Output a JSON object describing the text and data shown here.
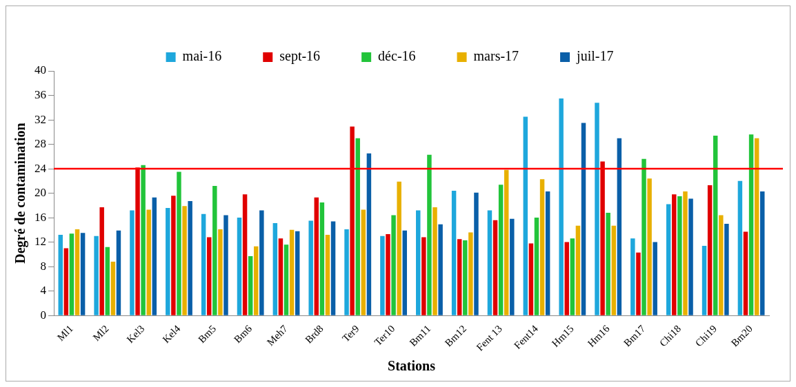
{
  "chart_data": {
    "type": "bar",
    "xlabel": "Stations",
    "ylabel": "Degré de contamination",
    "categories": [
      "Ml1",
      "Ml2",
      "Kel3",
      "Kel4",
      "Bm5",
      "Bm6",
      "Meh7",
      "Brd8",
      "Ter9",
      "Ter10",
      "Bm11",
      "Bm12",
      "Fent 13",
      "Fent14",
      "Hm15",
      "Hm16",
      "Bm17",
      "Chi18",
      "Chi19",
      "Bm20"
    ],
    "series": [
      {
        "name": "mai-16",
        "color": "#1ea7dc",
        "values": [
          13.2,
          13,
          17.2,
          17.6,
          16.6,
          16,
          15.1,
          15.5,
          14.1,
          13,
          17.2,
          20.4,
          17.2,
          32.5,
          35.5,
          34.8,
          12.6,
          18.2,
          11.4,
          22
        ]
      },
      {
        "name": "sept-16",
        "color": "#e00000",
        "values": [
          11,
          17.7,
          24.2,
          19.6,
          12.8,
          19.8,
          12.6,
          19.3,
          30.9,
          13.3,
          12.8,
          12.5,
          15.6,
          11.8,
          12,
          25.2,
          10.3,
          19.8,
          21.3,
          13.7
        ]
      },
      {
        "name": "déc-16",
        "color": "#22c43a",
        "values": [
          13.4,
          11.2,
          24.6,
          23.5,
          21.2,
          9.7,
          11.6,
          18.5,
          29,
          16.4,
          26.3,
          12.3,
          21.4,
          16,
          12.6,
          16.8,
          25.6,
          19.5,
          29.4,
          29.6
        ]
      },
      {
        "name": "mars-17",
        "color": "#e8b000",
        "values": [
          14.1,
          8.8,
          17.3,
          17.9,
          14.1,
          11.3,
          14,
          13.2,
          17.3,
          21.9,
          17.7,
          13.6,
          23.8,
          22.3,
          14.7,
          14.7,
          22.4,
          20.3,
          16.4,
          29
        ]
      },
      {
        "name": "juil-17",
        "color": "#0a5fa8",
        "values": [
          13.5,
          13.9,
          19.3,
          18.7,
          16.4,
          17.2,
          13.8,
          15.4,
          26.5,
          13.9,
          14.9,
          20.1,
          15.8,
          20.3,
          31.5,
          29,
          12,
          19.1,
          15,
          20.3
        ]
      }
    ],
    "ylim": [
      0,
      40
    ],
    "yticks": [
      0,
      4,
      8,
      12,
      16,
      20,
      24,
      28,
      32,
      36,
      40
    ],
    "grid": false,
    "legend": "top",
    "ref_lines": [
      {
        "axis": "y",
        "value": 24,
        "color": "#ff0000"
      }
    ]
  }
}
